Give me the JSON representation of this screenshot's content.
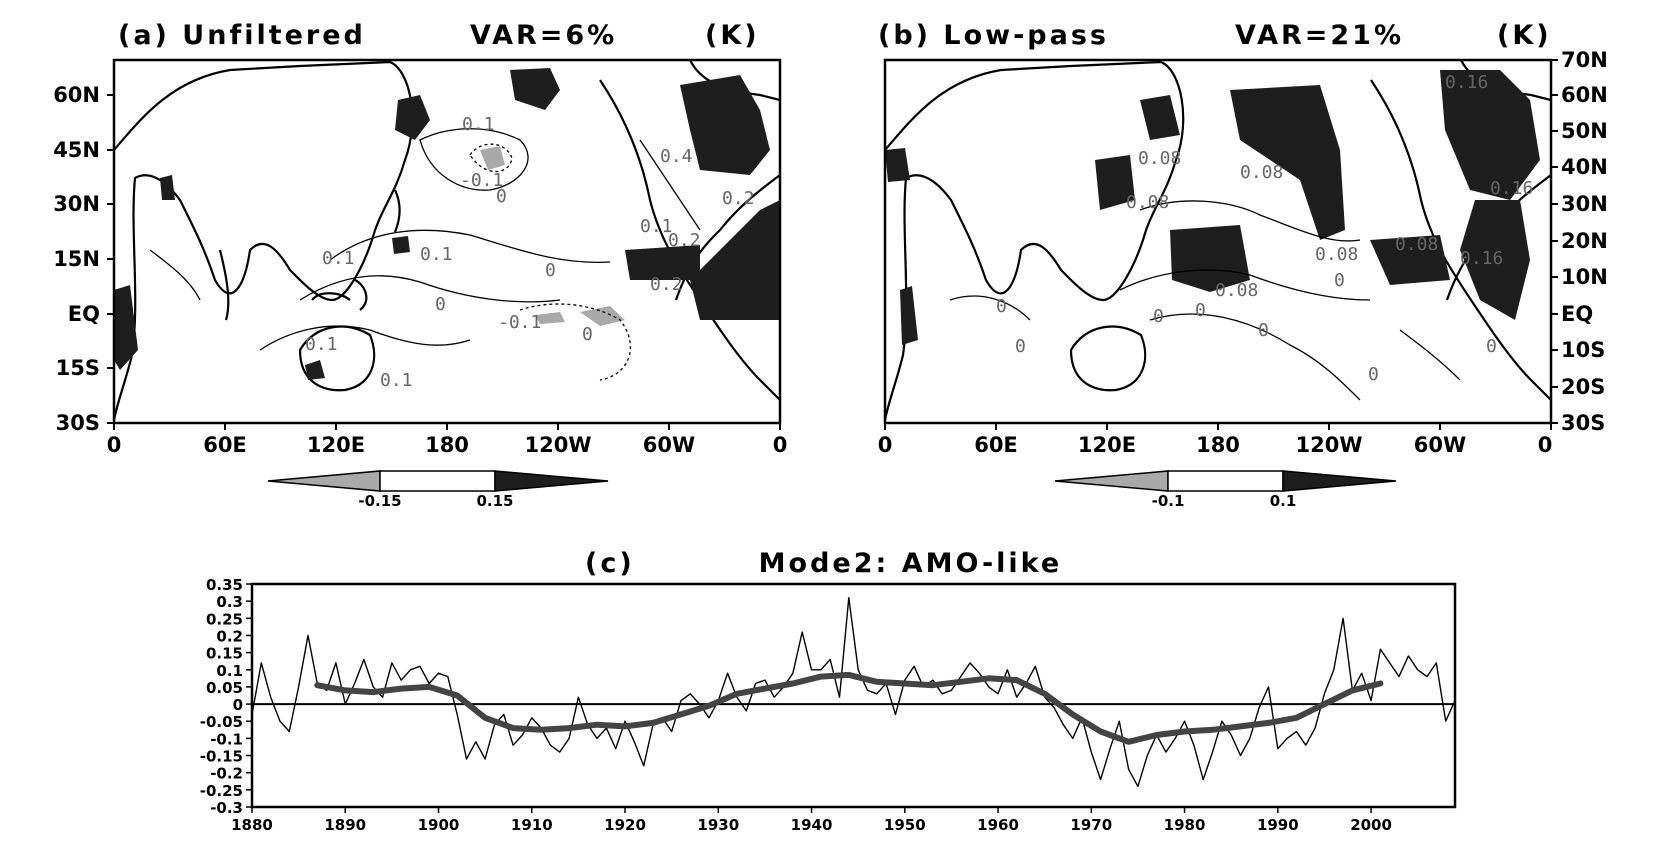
{
  "panels": [
    {
      "title": "(a)  Unfiltered",
      "var_label": "VAR=6%",
      "unit": "(K)",
      "x_ticks": [
        "0",
        "60E",
        "120E",
        "180",
        "120W",
        "60W",
        "0"
      ],
      "y_ticks": [
        "60N",
        "45N",
        "30N",
        "15N",
        "EQ",
        "15S",
        "30S"
      ],
      "colorbar": {
        "labels": [
          "-0.15",
          "0.15"
        ],
        "low_color": "#a9a9a9",
        "high_color": "#1e1e1e"
      },
      "contour_labels": [
        "0.1",
        "-0.1",
        "0",
        "0.4",
        "0.2",
        "0.1",
        "0.2",
        "0.1",
        "0.1",
        "0",
        "0.2",
        "0",
        "-0.1",
        "0",
        "0.1",
        "0.1"
      ]
    },
    {
      "title": "(b)  Low-pass",
      "var_label": "VAR=21%",
      "unit": "(K)",
      "x_ticks": [
        "0",
        "60E",
        "120E",
        "180",
        "120W",
        "60W",
        "0"
      ],
      "y_ticks": [
        "70N",
        "60N",
        "50N",
        "40N",
        "30N",
        "20N",
        "10N",
        "EQ",
        "10S",
        "20S",
        "30S"
      ],
      "colorbar": {
        "labels": [
          "-0.1",
          "0.1"
        ],
        "low_color": "#a9a9a9",
        "high_color": "#1e1e1e"
      },
      "contour_labels": [
        "0.16",
        "0.08",
        "0.08",
        "0.08",
        "0.16",
        "0.08",
        "0.08",
        "0.16",
        "0.08",
        "0",
        "0",
        "0",
        "0",
        "0",
        "0",
        "0",
        "0"
      ]
    }
  ],
  "chart_data": {
    "type": "line",
    "title": "(c)          Mode2: AMO-like",
    "xlim": [
      1880,
      2009
    ],
    "ylim": [
      -0.3,
      0.35
    ],
    "x_ticks": [
      1880,
      1890,
      1900,
      1910,
      1920,
      1930,
      1940,
      1950,
      1960,
      1970,
      1980,
      1990,
      2000
    ],
    "y_ticks": [
      "0.35",
      "0.3",
      "0.25",
      "0.2",
      "0.15",
      "0.1",
      "0.05",
      "0",
      "-0.05",
      "-0.1",
      "-0.15",
      "-0.2",
      "-0.25",
      "-0.3"
    ],
    "grid": false,
    "series": [
      {
        "style": "thin-black",
        "x": [
          1880,
          1881,
          1882,
          1883,
          1884,
          1885,
          1886,
          1887,
          1888,
          1889,
          1890,
          1891,
          1892,
          1893,
          1894,
          1895,
          1896,
          1897,
          1898,
          1899,
          1900,
          1901,
          1902,
          1903,
          1904,
          1905,
          1906,
          1907,
          1908,
          1909,
          1910,
          1911,
          1912,
          1913,
          1914,
          1915,
          1916,
          1917,
          1918,
          1919,
          1920,
          1921,
          1922,
          1923,
          1924,
          1925,
          1926,
          1927,
          1928,
          1929,
          1930,
          1931,
          1932,
          1933,
          1934,
          1935,
          1936,
          1937,
          1938,
          1939,
          1940,
          1941,
          1942,
          1943,
          1944,
          1945,
          1946,
          1947,
          1948,
          1949,
          1950,
          1951,
          1952,
          1953,
          1954,
          1955,
          1956,
          1957,
          1958,
          1959,
          1960,
          1961,
          1962,
          1963,
          1964,
          1965,
          1966,
          1967,
          1968,
          1969,
          1970,
          1971,
          1972,
          1973,
          1974,
          1975,
          1976,
          1977,
          1978,
          1979,
          1980,
          1981,
          1982,
          1983,
          1984,
          1985,
          1986,
          1987,
          1988,
          1989,
          1990,
          1991,
          1992,
          1993,
          1994,
          1995,
          1996,
          1997,
          1998,
          1999,
          2000,
          2001,
          2002,
          2003,
          2004,
          2005,
          2006,
          2007,
          2008,
          2009
        ],
        "values": [
          -0.03,
          0.12,
          0.02,
          -0.05,
          -0.08,
          0.05,
          0.2,
          0.06,
          0.04,
          0.12,
          0.0,
          0.06,
          0.13,
          0.05,
          0.02,
          0.12,
          0.07,
          0.1,
          0.11,
          0.06,
          0.09,
          0.08,
          -0.03,
          -0.16,
          -0.11,
          -0.16,
          -0.06,
          -0.03,
          -0.12,
          -0.09,
          -0.04,
          -0.07,
          -0.12,
          -0.14,
          -0.1,
          0.02,
          -0.06,
          -0.1,
          -0.07,
          -0.13,
          -0.05,
          -0.11,
          -0.18,
          -0.06,
          -0.04,
          -0.08,
          0.01,
          0.03,
          0.0,
          -0.04,
          0.01,
          0.09,
          0.02,
          -0.02,
          0.06,
          0.07,
          0.02,
          0.05,
          0.09,
          0.21,
          0.1,
          0.1,
          0.13,
          0.02,
          0.31,
          0.1,
          0.04,
          0.03,
          0.06,
          -0.03,
          0.07,
          0.11,
          0.05,
          0.07,
          0.03,
          0.04,
          0.08,
          0.12,
          0.09,
          0.05,
          0.03,
          0.1,
          0.02,
          0.06,
          0.11,
          0.02,
          -0.01,
          -0.06,
          -0.1,
          -0.04,
          -0.14,
          -0.22,
          -0.13,
          -0.05,
          -0.19,
          -0.24,
          -0.15,
          -0.09,
          -0.14,
          -0.1,
          -0.05,
          -0.12,
          -0.22,
          -0.14,
          -0.05,
          -0.09,
          -0.15,
          -0.1,
          -0.01,
          0.05,
          -0.13,
          -0.1,
          -0.08,
          -0.12,
          -0.07,
          0.03,
          0.1,
          0.25,
          0.04,
          0.09,
          0.01,
          0.16,
          0.12,
          0.08,
          0.14,
          0.1,
          0.08,
          0.12,
          -0.05,
          0.01
        ]
      },
      {
        "style": "thick-gray-smoothed",
        "x": [
          1887,
          1890,
          1893,
          1896,
          1899,
          1902,
          1905,
          1908,
          1911,
          1914,
          1917,
          1920,
          1923,
          1926,
          1929,
          1932,
          1935,
          1938,
          1941,
          1944,
          1947,
          1950,
          1953,
          1956,
          1959,
          1962,
          1965,
          1968,
          1971,
          1974,
          1977,
          1980,
          1983,
          1986,
          1989,
          1992,
          1995,
          1998,
          2001
        ],
        "values": [
          0.055,
          0.04,
          0.035,
          0.045,
          0.05,
          0.025,
          -0.04,
          -0.07,
          -0.075,
          -0.07,
          -0.06,
          -0.065,
          -0.055,
          -0.03,
          -0.005,
          0.03,
          0.045,
          0.06,
          0.08,
          0.085,
          0.065,
          0.06,
          0.055,
          0.065,
          0.075,
          0.07,
          0.03,
          -0.03,
          -0.08,
          -0.11,
          -0.09,
          -0.08,
          -0.075,
          -0.065,
          -0.055,
          -0.04,
          0.0,
          0.04,
          0.06
        ]
      }
    ]
  }
}
